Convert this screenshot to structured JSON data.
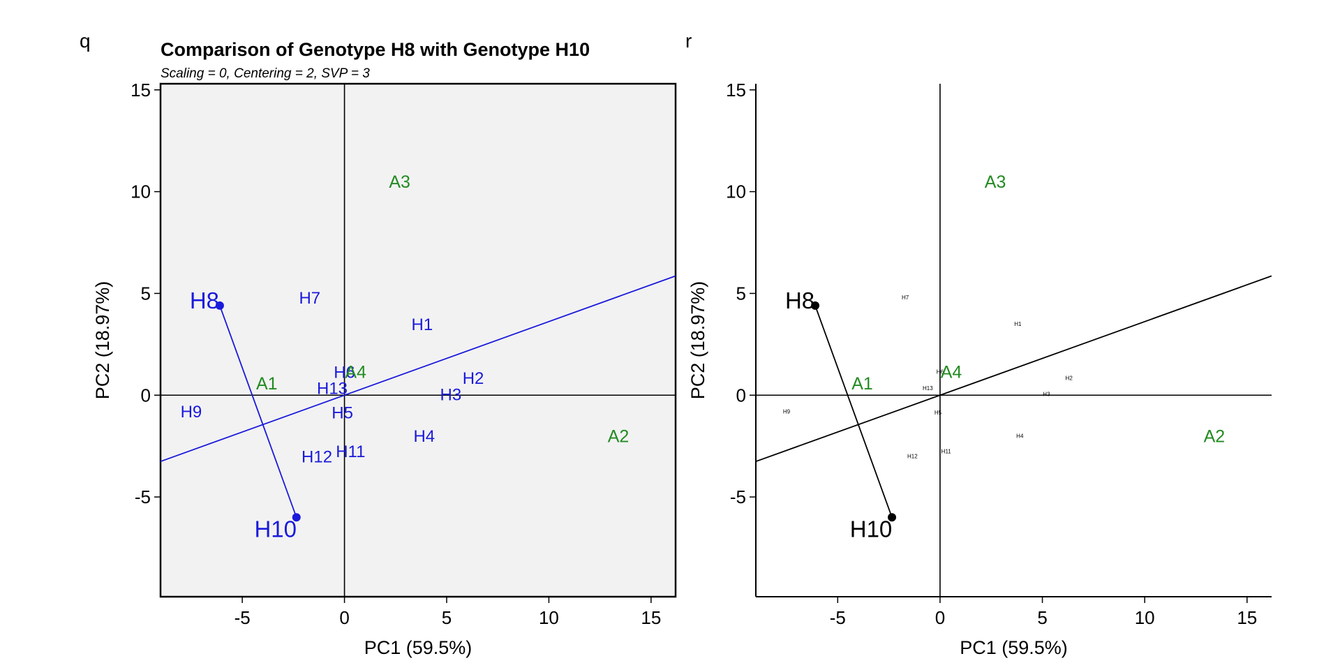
{
  "colors": {
    "genotype_left": "#1a1adb",
    "environment": "#228b22",
    "genotype_right": "#000000",
    "panel_bg": "#f2f2f2",
    "axis": "#000000"
  },
  "chart_data": [
    {
      "type": "scatter",
      "panel_letter": "q",
      "title": "Comparison of Genotype H8 with Genotype H10",
      "subtitle": "Scaling = 0, Centering = 2, SVP = 3",
      "xlabel": "PC1 (59.5%)",
      "ylabel": "PC2 (18.97%)",
      "xlim": [
        -9,
        16.2
      ],
      "ylim": [
        -9.9,
        15.3
      ],
      "xticks": [
        -5,
        0,
        5,
        10,
        15
      ],
      "yticks": [
        -5,
        0,
        5,
        10,
        15
      ],
      "background": "gray",
      "genotypes": [
        {
          "label": "H1",
          "x": 3.8,
          "y": 3.5
        },
        {
          "label": "H2",
          "x": 6.3,
          "y": 0.85
        },
        {
          "label": "H3",
          "x": 5.2,
          "y": 0.05
        },
        {
          "label": "H4",
          "x": 3.9,
          "y": -2.0
        },
        {
          "label": "H5",
          "x": -0.1,
          "y": -0.85
        },
        {
          "label": "H6",
          "x": 0.0,
          "y": 1.15
        },
        {
          "label": "H7",
          "x": -1.7,
          "y": 4.8
        },
        {
          "label": "H9",
          "x": -7.5,
          "y": -0.8
        },
        {
          "label": "H11",
          "x": 0.3,
          "y": -2.75
        },
        {
          "label": "H12",
          "x": -1.35,
          "y": -3.0
        },
        {
          "label": "H13",
          "x": -0.6,
          "y": 0.35
        }
      ],
      "environments": [
        {
          "label": "A1",
          "x": -3.8,
          "y": 0.6
        },
        {
          "label": "A2",
          "x": 13.4,
          "y": -2.0
        },
        {
          "label": "A3",
          "x": 2.7,
          "y": 10.5
        },
        {
          "label": "A4",
          "x": 0.55,
          "y": 1.15
        }
      ],
      "compared": [
        {
          "label": "H8",
          "x": -6.1,
          "y": 4.4
        },
        {
          "label": "H10",
          "x": -2.35,
          "y": -6.0
        }
      ],
      "comparison_line_slope": 0.3616
    },
    {
      "type": "scatter",
      "panel_letter": "r",
      "title": "",
      "subtitle": "",
      "xlabel": "PC1 (59.5%)",
      "ylabel": "PC2 (18.97%)",
      "xlim": [
        -9,
        16.2
      ],
      "ylim": [
        -9.9,
        15.3
      ],
      "xticks": [
        -5,
        0,
        5,
        10,
        15
      ],
      "yticks": [
        -5,
        0,
        5,
        10,
        15
      ],
      "background": "white",
      "genotypes": [
        {
          "label": "H1",
          "x": 3.8,
          "y": 3.5
        },
        {
          "label": "H2",
          "x": 6.3,
          "y": 0.85
        },
        {
          "label": "H3",
          "x": 5.2,
          "y": 0.05
        },
        {
          "label": "H4",
          "x": 3.9,
          "y": -2.0
        },
        {
          "label": "H5",
          "x": -0.1,
          "y": -0.85
        },
        {
          "label": "H6",
          "x": 0.0,
          "y": 1.15
        },
        {
          "label": "H7",
          "x": -1.7,
          "y": 4.8
        },
        {
          "label": "H9",
          "x": -7.5,
          "y": -0.8
        },
        {
          "label": "H11",
          "x": 0.3,
          "y": -2.75
        },
        {
          "label": "H12",
          "x": -1.35,
          "y": -3.0
        },
        {
          "label": "H13",
          "x": -0.6,
          "y": 0.35
        }
      ],
      "environments": [
        {
          "label": "A1",
          "x": -3.8,
          "y": 0.6
        },
        {
          "label": "A2",
          "x": 13.4,
          "y": -2.0
        },
        {
          "label": "A3",
          "x": 2.7,
          "y": 10.5
        },
        {
          "label": "A4",
          "x": 0.55,
          "y": 1.15
        }
      ],
      "compared": [
        {
          "label": "H8",
          "x": -6.1,
          "y": 4.4
        },
        {
          "label": "H10",
          "x": -2.35,
          "y": -6.0
        }
      ],
      "comparison_line_slope": 0.3616
    }
  ]
}
